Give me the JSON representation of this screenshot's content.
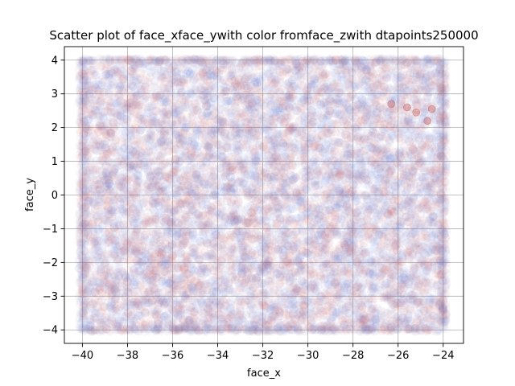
{
  "chart_data": {
    "type": "scatter",
    "title": "Scatter plot of face_xface_ywith color fromface_zwith dtapoints250000",
    "xlabel": "face_x",
    "ylabel": "face_y",
    "xlim": [
      -40.8,
      -23.1
    ],
    "ylim": [
      -4.4,
      4.4
    ],
    "x_ticks": [
      -40,
      -38,
      -36,
      -34,
      -32,
      -30,
      -28,
      -26,
      -24
    ],
    "x_tick_labels": [
      "−40",
      "−38",
      "−36",
      "−34",
      "−32",
      "−30",
      "−28",
      "−26",
      "−24"
    ],
    "y_ticks": [
      -4,
      -3,
      -2,
      -1,
      0,
      1,
      2,
      3,
      4
    ],
    "y_tick_labels": [
      "−4",
      "−3",
      "−2",
      "−1",
      "0",
      "1",
      "2",
      "3",
      "4"
    ],
    "grid": true,
    "point_distribution": {
      "x_range": [
        -40,
        -24
      ],
      "y_range": [
        -4,
        4
      ],
      "count": 250000,
      "color_by": "face_z",
      "colormap": [
        "#4f6bd8",
        "#8a7ab8",
        "#c0504d"
      ],
      "alpha": 0.03
    },
    "highlight_points": [
      {
        "x": -25.6,
        "y": 2.6
      },
      {
        "x": -26.3,
        "y": 2.7
      },
      {
        "x": -24.5,
        "y": 2.55
      },
      {
        "x": -24.7,
        "y": 2.2
      },
      {
        "x": -25.2,
        "y": 2.45
      }
    ]
  }
}
